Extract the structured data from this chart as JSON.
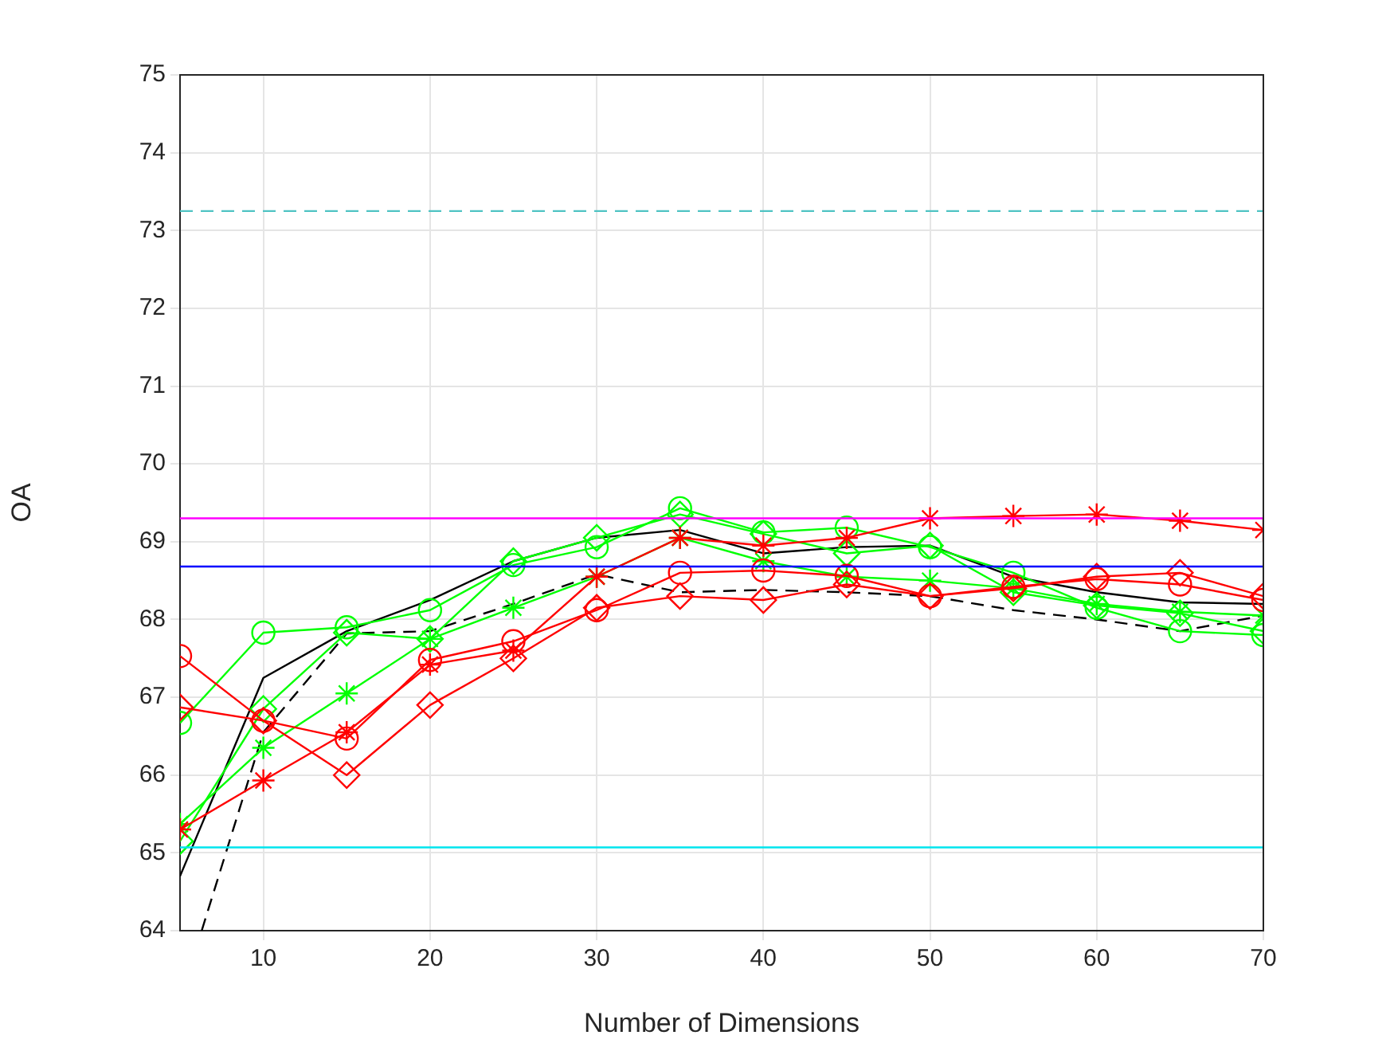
{
  "chart_data": {
    "type": "line",
    "xlabel": "Number of Dimensions",
    "ylabel": "OA",
    "x": [
      5,
      10,
      15,
      20,
      25,
      30,
      35,
      40,
      45,
      50,
      55,
      60,
      65,
      70
    ],
    "xlim": [
      5,
      70
    ],
    "xticks": [
      10,
      20,
      30,
      40,
      50,
      60,
      70
    ],
    "ylim": [
      64,
      75
    ],
    "yticks": [
      64,
      65,
      66,
      67,
      68,
      69,
      70,
      71,
      72,
      73,
      74,
      75
    ],
    "grid": true,
    "legend": false,
    "series": [
      {
        "color": "#ff0000",
        "marker": "circle",
        "line_style": "solid",
        "values": [
          67.53,
          66.7,
          66.47,
          67.48,
          67.72,
          68.12,
          68.6,
          68.63,
          68.56,
          68.3,
          68.42,
          68.52,
          68.45,
          68.25
        ]
      },
      {
        "color": "#ff0000",
        "marker": "diamond",
        "line_style": "solid",
        "values": [
          66.87,
          66.7,
          66.0,
          66.9,
          67.5,
          68.15,
          68.3,
          68.25,
          68.45,
          68.3,
          68.4,
          68.55,
          68.6,
          68.3
        ]
      },
      {
        "color": "#ff0000",
        "marker": "cross",
        "line_style": "solid",
        "values": [
          65.3,
          65.93,
          66.55,
          67.42,
          67.6,
          68.55,
          69.05,
          68.95,
          69.05,
          69.3,
          69.33,
          69.35,
          69.27,
          69.15
        ]
      },
      {
        "color": "#00ff00",
        "marker": "circle",
        "line_style": "solid",
        "values": [
          66.67,
          67.83,
          67.9,
          68.12,
          68.7,
          68.93,
          69.43,
          69.12,
          69.18,
          68.93,
          68.6,
          68.15,
          67.85,
          67.8
        ]
      },
      {
        "color": "#00ff00",
        "marker": "diamond",
        "line_style": "solid",
        "values": [
          65.15,
          66.85,
          67.83,
          67.75,
          68.75,
          69.05,
          69.35,
          69.1,
          68.85,
          68.95,
          68.35,
          68.18,
          68.08,
          67.85
        ]
      },
      {
        "color": "#00ff00",
        "marker": "cross",
        "line_style": "solid",
        "values": [
          65.37,
          66.35,
          67.05,
          67.75,
          68.15,
          68.55,
          69.05,
          68.75,
          68.55,
          68.5,
          68.4,
          68.2,
          68.1,
          68.05
        ]
      },
      {
        "color": "#000000",
        "marker": "none",
        "line_style": "solid",
        "values": [
          64.7,
          67.25,
          67.85,
          68.25,
          68.75,
          69.05,
          69.15,
          68.85,
          68.93,
          68.95,
          68.55,
          68.35,
          68.22,
          68.2
        ]
      },
      {
        "color": "#000000",
        "marker": "none",
        "line_style": "dashed",
        "x": [
          6.3,
          10,
          15,
          20,
          25,
          30,
          35,
          40,
          45,
          50,
          55,
          60,
          65,
          70
        ],
        "values": [
          64,
          66.55,
          67.82,
          67.85,
          68.2,
          68.58,
          68.35,
          68.38,
          68.35,
          68.3,
          68.12,
          68.0,
          67.85,
          68.05
        ]
      }
    ],
    "ref_lines": [
      {
        "axis": "y",
        "value": 73.25,
        "color": "#4fc3c3",
        "line_style": "dashed"
      },
      {
        "axis": "y",
        "value": 69.3,
        "color": "#ff00ff",
        "line_style": "solid"
      },
      {
        "axis": "y",
        "value": 68.68,
        "color": "#0000ff",
        "line_style": "solid"
      },
      {
        "axis": "y",
        "value": 65.07,
        "color": "#00e5ee",
        "line_style": "solid"
      }
    ]
  }
}
